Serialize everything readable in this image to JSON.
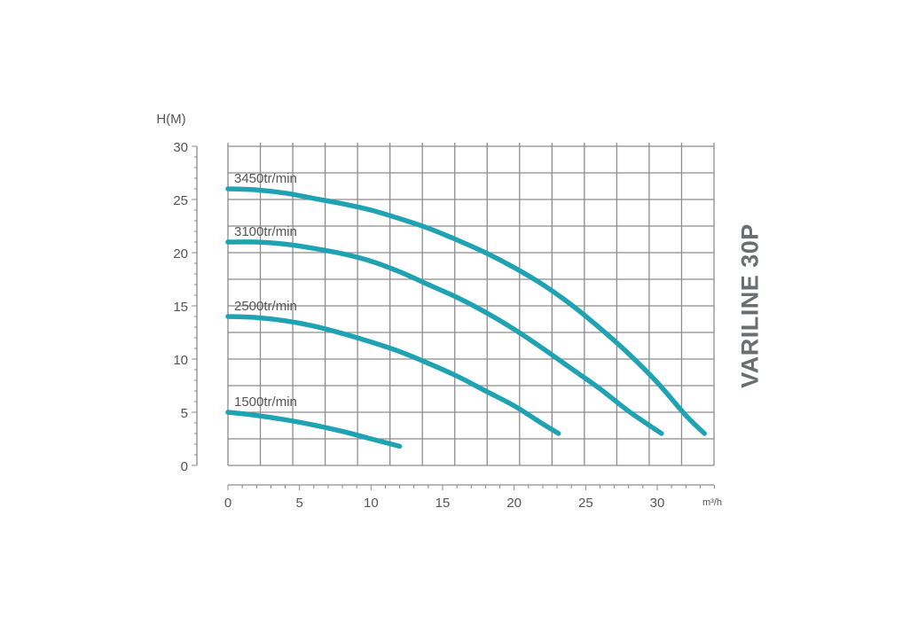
{
  "chart_data": {
    "type": "line",
    "title": "VARILINE 30P",
    "ylabel": "H(M)",
    "xlabel": "m³/h",
    "xlim": [
      0,
      34
    ],
    "ylim": [
      0,
      30
    ],
    "x_ticks": [
      0,
      5,
      10,
      15,
      20,
      25,
      30
    ],
    "y_ticks": [
      0,
      5,
      10,
      15,
      20,
      25,
      30
    ],
    "grid": true,
    "series_color": "#1fa3b3",
    "series": [
      {
        "name": "3450tr/min",
        "x": [
          0,
          2,
          4,
          6,
          8,
          10,
          12,
          14,
          16,
          18,
          20,
          22,
          24,
          26,
          28,
          30,
          32,
          33.3
        ],
        "y": [
          26.0,
          25.9,
          25.6,
          25.1,
          24.6,
          24.0,
          23.2,
          22.3,
          21.2,
          20.0,
          18.6,
          17.0,
          15.1,
          12.9,
          10.5,
          7.8,
          4.7,
          3.0
        ]
      },
      {
        "name": "3100tr/min",
        "x": [
          0,
          2,
          4,
          6,
          8,
          10,
          12,
          14,
          16,
          18,
          20,
          22,
          24,
          26,
          28,
          30.3
        ],
        "y": [
          21.0,
          21.0,
          20.8,
          20.4,
          19.9,
          19.2,
          18.2,
          17.0,
          15.8,
          14.4,
          12.8,
          11.0,
          9.1,
          7.2,
          5.1,
          3.0
        ]
      },
      {
        "name": "2500tr/min",
        "x": [
          0,
          2,
          4,
          6,
          8,
          10,
          12,
          14,
          16,
          18,
          20,
          22,
          23.1
        ],
        "y": [
          14.0,
          13.9,
          13.6,
          13.1,
          12.4,
          11.6,
          10.7,
          9.6,
          8.4,
          7.0,
          5.6,
          3.9,
          3.0
        ]
      },
      {
        "name": "1500tr/min",
        "x": [
          0,
          2,
          4,
          6,
          8,
          10,
          12
        ],
        "y": [
          5.0,
          4.7,
          4.3,
          3.8,
          3.2,
          2.5,
          1.8
        ]
      }
    ]
  }
}
